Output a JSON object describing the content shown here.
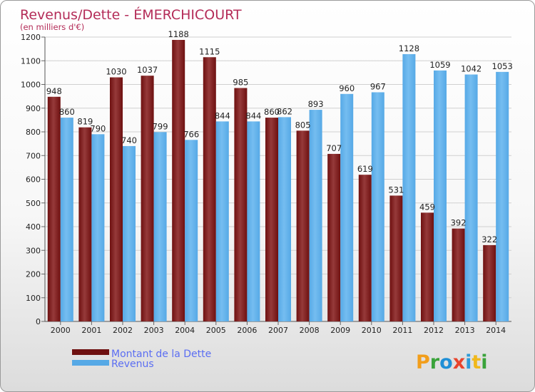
{
  "colors": {
    "dette": "#6e1010",
    "dette_light": "#963a3a",
    "revenus": "#56a9e6",
    "revenus_light": "#75bdf0",
    "title": "#b42c58",
    "legend": "#5b6ef2"
  },
  "logo": {
    "letters": [
      {
        "char": "P",
        "color": "#f29e1b"
      },
      {
        "char": "r",
        "color": "#3aa33a"
      },
      {
        "char": "o",
        "color": "#1f8fd6"
      },
      {
        "char": "x",
        "color": "#e8442c"
      },
      {
        "char": "i",
        "color": "#2d9bd8"
      },
      {
        "char": "t",
        "color": "#f0b81c"
      },
      {
        "char": "i",
        "color": "#3aa33a"
      }
    ]
  },
  "chart_data": {
    "type": "bar",
    "title": "Revenus/Dette - ÉMERCHICOURT",
    "subtitle": "(en milliers d'€)",
    "categories": [
      "2000",
      "2001",
      "2002",
      "2003",
      "2004",
      "2005",
      "2006",
      "2007",
      "2008",
      "2009",
      "2010",
      "2011",
      "2012",
      "2013",
      "2014"
    ],
    "series": [
      {
        "name": "Montant de la Dette",
        "values": [
          948,
          819,
          1030,
          1037,
          1188,
          1115,
          985,
          860,
          805,
          707,
          619,
          531,
          459,
          392,
          322
        ]
      },
      {
        "name": "Revenus",
        "values": [
          860,
          790,
          740,
          799,
          766,
          844,
          844,
          862,
          893,
          960,
          967,
          1128,
          1059,
          1042,
          1053
        ]
      }
    ],
    "ylim": [
      0,
      1200
    ],
    "yticks": [
      0,
      100,
      200,
      300,
      400,
      500,
      600,
      700,
      800,
      900,
      1000,
      1100,
      1200
    ],
    "grid": true,
    "legend_position": "bottom-left"
  }
}
